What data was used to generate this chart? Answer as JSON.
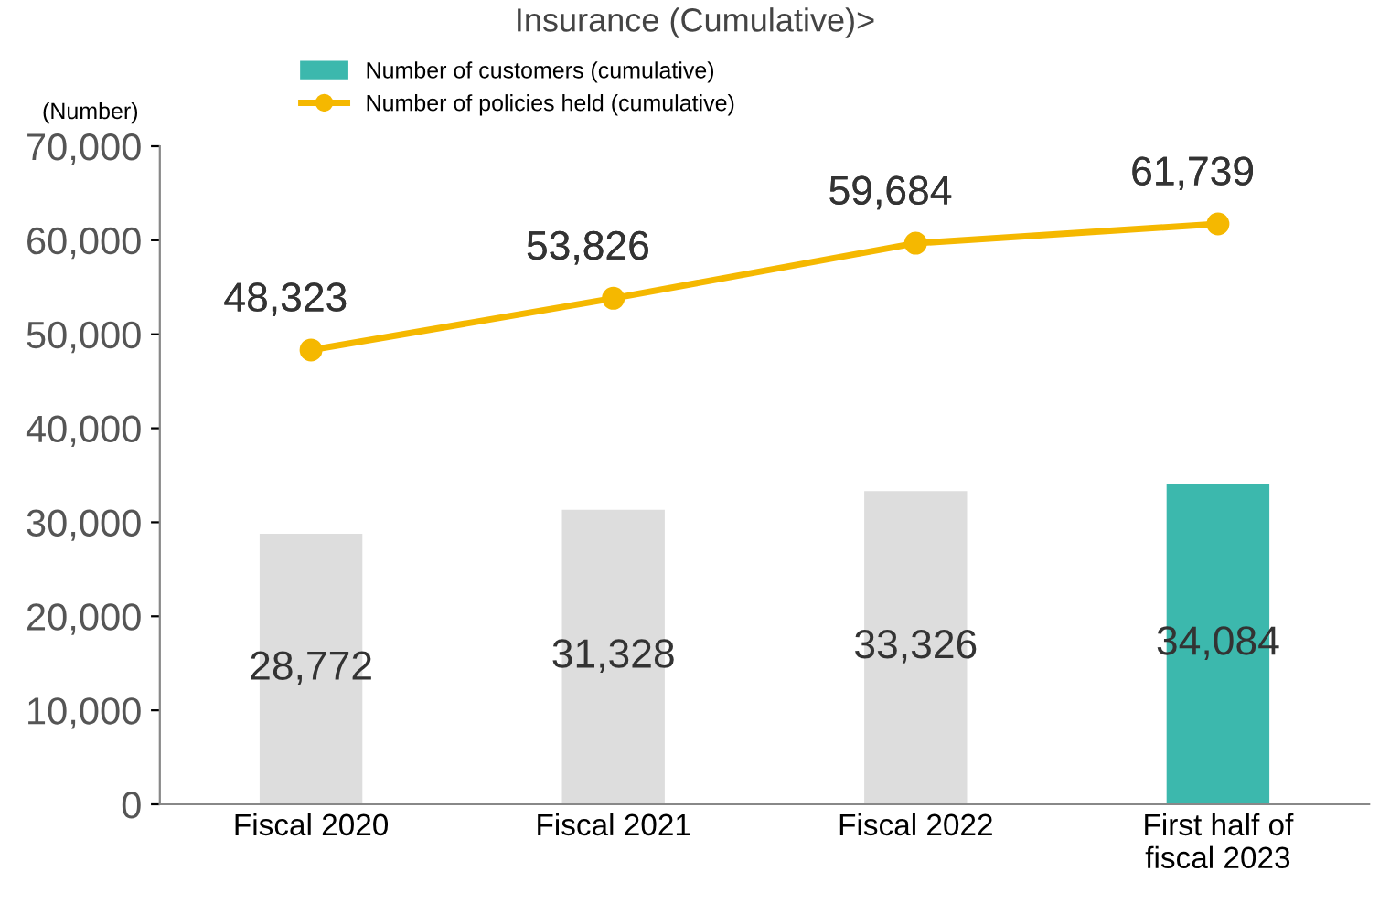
{
  "chart_data": {
    "type": "bar",
    "title": "Insurance (Cumulative)>",
    "ylabel": "(Number)",
    "categories": [
      "Fiscal 2020",
      "Fiscal 2021",
      "Fiscal 2022",
      "First half of\nfiscal 2023"
    ],
    "series": [
      {
        "name": "Number of customers (cumulative)",
        "color": "#3cb8ad",
        "colors": [
          "#dddddd",
          "#dddddd",
          "#dddddd",
          "#3cb8ad"
        ],
        "values": [
          28772,
          31328,
          33326,
          34084
        ],
        "value_labels": [
          "28,772",
          "31,328",
          "33,326",
          "34,084"
        ]
      },
      {
        "name": "Number of policies held (cumulative)",
        "type": "line",
        "color": "#f5b800",
        "marker": "circle",
        "values": [
          48323,
          53826,
          59684,
          61739
        ],
        "value_labels": [
          "48,323",
          "53,826",
          "59,684",
          "61,739"
        ]
      }
    ],
    "ylim": [
      0,
      70000
    ],
    "yticks": [
      {
        "value": 0,
        "label": "0"
      },
      {
        "value": 10000,
        "label": "10,000"
      },
      {
        "value": 20000,
        "label": "20,000"
      },
      {
        "value": 30000,
        "label": "30,000"
      },
      {
        "value": 40000,
        "label": "40,000"
      },
      {
        "value": 50000,
        "label": "50,000"
      },
      {
        "value": 60000,
        "label": "60,000"
      },
      {
        "value": 70000,
        "label": "70,000"
      }
    ],
    "grid": false,
    "legend": "top left"
  }
}
